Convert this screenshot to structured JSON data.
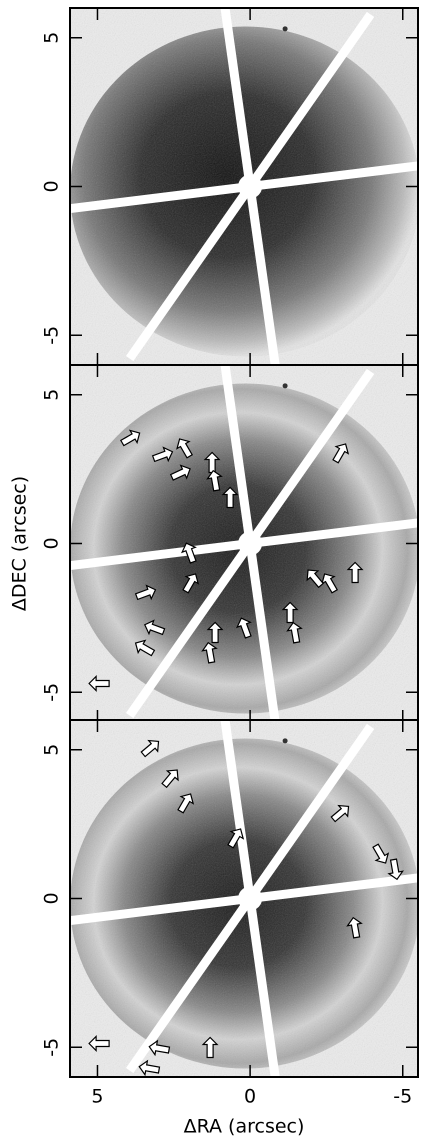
{
  "chart_data": [
    {
      "type": "image",
      "xlim": [
        5.9,
        -5.5
      ],
      "ylim": [
        -6,
        6
      ],
      "xticks": [
        5,
        0,
        -5
      ],
      "yticks": [
        -5,
        0,
        5
      ]
    },
    {
      "type": "image",
      "xlim": [
        5.9,
        -5.5
      ],
      "ylim": [
        -6,
        6
      ],
      "xticks": [
        5,
        0,
        -5
      ],
      "yticks": [
        -5,
        0,
        5
      ],
      "ylabel": "ΔDEC (arcsec)"
    },
    {
      "type": "image",
      "xlim": [
        5.9,
        -5.5
      ],
      "ylim": [
        -6,
        6
      ],
      "xticks": [
        5,
        0,
        -5
      ],
      "yticks": [
        -5,
        0,
        5
      ],
      "xlabel": "ΔRA (arcsec)"
    }
  ]
}
